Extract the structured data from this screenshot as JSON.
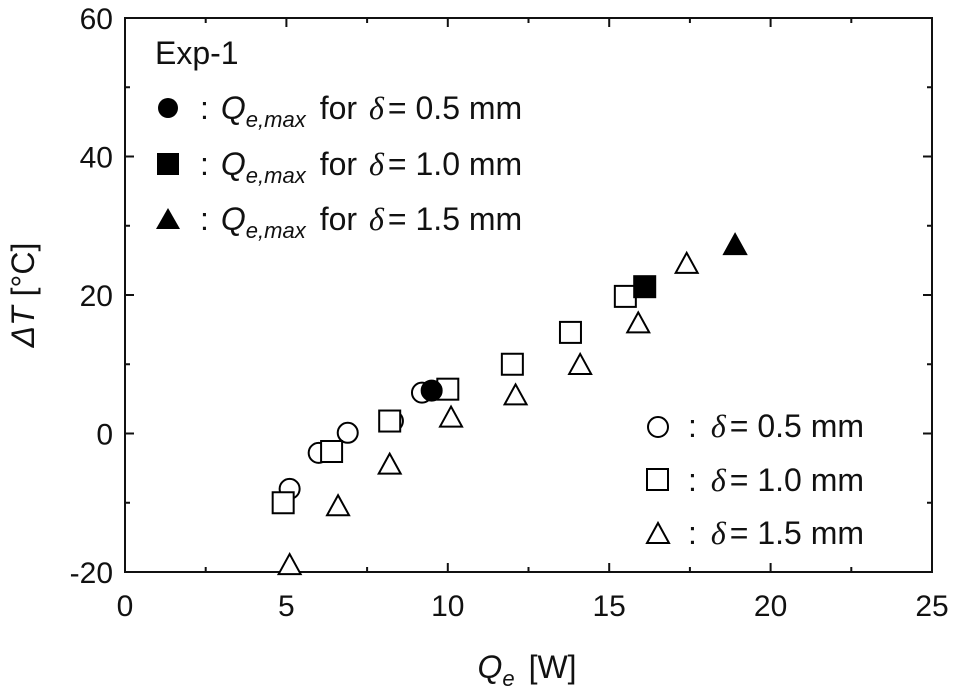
{
  "chart_data": {
    "type": "scatter",
    "title": "",
    "xlabel": {
      "symbol": "Q",
      "subscript": "e",
      "unit": "[W]"
    },
    "ylabel": {
      "symbol": "ΔT",
      "unit": "[°C]"
    },
    "xlim": [
      0,
      25
    ],
    "ylim": [
      -20,
      60
    ],
    "xticks": [
      0,
      5,
      10,
      15,
      20,
      25
    ],
    "yticks": [
      -20,
      0,
      20,
      40,
      60
    ],
    "grid": false,
    "series": [
      {
        "name": "δ = 0.5 mm",
        "marker": "circle",
        "filled": false,
        "points": [
          [
            5.1,
            -8
          ],
          [
            6.0,
            -2.8
          ],
          [
            6.9,
            0.1
          ],
          [
            8.3,
            1.8
          ],
          [
            9.2,
            5.9
          ]
        ]
      },
      {
        "name": "δ = 1.0 mm",
        "marker": "square",
        "filled": false,
        "points": [
          [
            4.9,
            -10
          ],
          [
            6.4,
            -2.6
          ],
          [
            8.2,
            1.8
          ],
          [
            10.0,
            6.4
          ],
          [
            12.0,
            10.0
          ],
          [
            13.8,
            14.6
          ],
          [
            15.5,
            19.8
          ]
        ]
      },
      {
        "name": "δ = 1.5 mm",
        "marker": "triangle",
        "filled": false,
        "points": [
          [
            5.1,
            -19
          ],
          [
            6.6,
            -10.5
          ],
          [
            8.2,
            -4.5
          ],
          [
            10.1,
            2.3
          ],
          [
            12.1,
            5.5
          ],
          [
            14.1,
            9.9
          ],
          [
            15.9,
            15.9
          ],
          [
            17.4,
            24.5
          ]
        ]
      },
      {
        "name": "Qe,max for δ = 0.5 mm",
        "marker": "circle",
        "filled": true,
        "points": [
          [
            9.5,
            6.2
          ]
        ]
      },
      {
        "name": "Qe,max for δ = 1.0 mm",
        "marker": "square",
        "filled": true,
        "points": [
          [
            16.1,
            21.2
          ]
        ]
      },
      {
        "name": "Qe,max for δ = 1.5 mm",
        "marker": "triangle",
        "filled": true,
        "points": [
          [
            18.9,
            27.2
          ]
        ]
      }
    ],
    "legend_topleft": {
      "title": "Exp-1",
      "entries": [
        {
          "marker": "circle",
          "filled": true,
          "colon": ":",
          "q": "Q",
          "sub": "e,max",
          "mid": "for",
          "delta": "δ",
          "value": "= 0.5 mm"
        },
        {
          "marker": "square",
          "filled": true,
          "colon": ":",
          "q": "Q",
          "sub": "e,max",
          "mid": "for",
          "delta": "δ",
          "value": "= 1.0 mm"
        },
        {
          "marker": "triangle",
          "filled": true,
          "colon": ":",
          "q": "Q",
          "sub": "e,max",
          "mid": "for",
          "delta": "δ",
          "value": "= 1.5 mm"
        }
      ]
    },
    "legend_bottomright": {
      "entries": [
        {
          "marker": "circle",
          "filled": false,
          "colon": ":",
          "delta": "δ",
          "value": "= 0.5 mm"
        },
        {
          "marker": "square",
          "filled": false,
          "colon": ":",
          "delta": "δ",
          "value": "= 1.0 mm"
        },
        {
          "marker": "triangle",
          "filled": false,
          "colon": ":",
          "delta": "δ",
          "value": "= 1.5 mm"
        }
      ]
    }
  }
}
